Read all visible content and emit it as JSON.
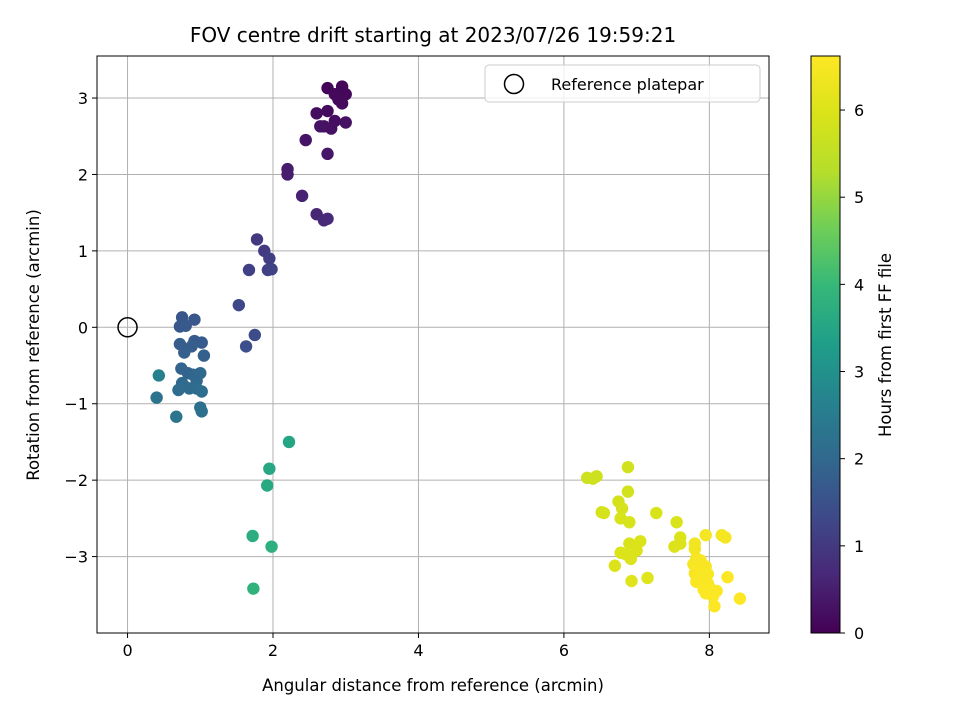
{
  "chart_data": {
    "type": "scatter",
    "title": "FOV centre drift starting at 2023/07/26 19:59:21",
    "xlabel": "Angular distance from reference (arcmin)",
    "ylabel": "Rotation from reference (arcmin)",
    "xlim": [
      -0.42,
      8.82
    ],
    "ylim": [
      -4.0,
      3.55
    ],
    "xticks": [
      0,
      2,
      4,
      6,
      8
    ],
    "yticks": [
      -3,
      -2,
      -1,
      0,
      1,
      2,
      3
    ],
    "xtick_labels": [
      "0",
      "2",
      "4",
      "6",
      "8"
    ],
    "ytick_labels": [
      "−3",
      "−2",
      "−1",
      "0",
      "1",
      "2",
      "3"
    ],
    "grid": true,
    "legend": {
      "label": "Reference platepar",
      "placement": "top-right"
    },
    "reference_point": {
      "x": 0,
      "y": 0
    },
    "colorbar": {
      "label": "Hours from first FF file",
      "colormap": "viridis",
      "range": [
        0,
        6.62
      ],
      "ticks": [
        0,
        1,
        2,
        3,
        4,
        5,
        6
      ],
      "tick_labels": [
        "0",
        "1",
        "2",
        "3",
        "4",
        "5",
        "6"
      ]
    },
    "points": [
      {
        "x": 2.75,
        "y": 3.13,
        "t": 0.05
      },
      {
        "x": 2.95,
        "y": 3.15,
        "t": 0.08
      },
      {
        "x": 3.0,
        "y": 3.05,
        "t": 0.1
      },
      {
        "x": 2.85,
        "y": 3.05,
        "t": 0.12
      },
      {
        "x": 2.9,
        "y": 2.98,
        "t": 0.14
      },
      {
        "x": 2.95,
        "y": 2.93,
        "t": 0.15
      },
      {
        "x": 2.75,
        "y": 2.83,
        "t": 0.18
      },
      {
        "x": 2.6,
        "y": 2.8,
        "t": 0.2
      },
      {
        "x": 2.85,
        "y": 2.7,
        "t": 0.22
      },
      {
        "x": 2.7,
        "y": 2.63,
        "t": 0.25
      },
      {
        "x": 2.8,
        "y": 2.6,
        "t": 0.27
      },
      {
        "x": 3.0,
        "y": 2.68,
        "t": 0.28
      },
      {
        "x": 2.65,
        "y": 2.63,
        "t": 0.3
      },
      {
        "x": 2.45,
        "y": 2.45,
        "t": 0.33
      },
      {
        "x": 2.75,
        "y": 2.27,
        "t": 0.36
      },
      {
        "x": 2.2,
        "y": 2.07,
        "t": 0.45
      },
      {
        "x": 2.2,
        "y": 2.0,
        "t": 0.48
      },
      {
        "x": 2.4,
        "y": 1.72,
        "t": 0.55
      },
      {
        "x": 2.6,
        "y": 1.48,
        "t": 0.62
      },
      {
        "x": 2.7,
        "y": 1.4,
        "t": 0.68
      },
      {
        "x": 2.75,
        "y": 1.42,
        "t": 0.7
      },
      {
        "x": 1.78,
        "y": 1.15,
        "t": 1.0
      },
      {
        "x": 1.88,
        "y": 1.0,
        "t": 1.05
      },
      {
        "x": 1.95,
        "y": 0.9,
        "t": 1.1
      },
      {
        "x": 1.67,
        "y": 0.75,
        "t": 1.15
      },
      {
        "x": 1.93,
        "y": 0.75,
        "t": 1.15
      },
      {
        "x": 1.98,
        "y": 0.76,
        "t": 1.18
      },
      {
        "x": 1.53,
        "y": 0.29,
        "t": 1.3
      },
      {
        "x": 1.75,
        "y": -0.1,
        "t": 1.4
      },
      {
        "x": 1.63,
        "y": -0.25,
        "t": 1.45
      },
      {
        "x": 0.75,
        "y": 0.13,
        "t": 1.6
      },
      {
        "x": 0.92,
        "y": 0.1,
        "t": 1.62
      },
      {
        "x": 0.72,
        "y": 0.01,
        "t": 1.65
      },
      {
        "x": 0.8,
        "y": 0.02,
        "t": 1.66
      },
      {
        "x": 0.92,
        "y": -0.18,
        "t": 1.7
      },
      {
        "x": 1.02,
        "y": -0.2,
        "t": 1.7
      },
      {
        "x": 0.72,
        "y": -0.22,
        "t": 1.75
      },
      {
        "x": 0.88,
        "y": -0.25,
        "t": 1.75
      },
      {
        "x": 0.78,
        "y": -0.33,
        "t": 1.8
      },
      {
        "x": 1.05,
        "y": -0.37,
        "t": 1.8
      },
      {
        "x": 0.74,
        "y": -0.54,
        "t": 1.9
      },
      {
        "x": 0.83,
        "y": -0.6,
        "t": 1.9
      },
      {
        "x": 0.9,
        "y": -0.62,
        "t": 1.95
      },
      {
        "x": 1.0,
        "y": -0.6,
        "t": 1.98
      },
      {
        "x": 0.43,
        "y": -0.63,
        "t": 2.6
      },
      {
        "x": 0.75,
        "y": -0.73,
        "t": 2.0
      },
      {
        "x": 0.95,
        "y": -0.7,
        "t": 2.0
      },
      {
        "x": 0.78,
        "y": -0.77,
        "t": 2.05
      },
      {
        "x": 0.85,
        "y": -0.8,
        "t": 2.05
      },
      {
        "x": 0.7,
        "y": -0.82,
        "t": 2.1
      },
      {
        "x": 0.95,
        "y": -0.8,
        "t": 2.1
      },
      {
        "x": 1.02,
        "y": -0.84,
        "t": 2.15
      },
      {
        "x": 1.0,
        "y": -1.05,
        "t": 2.2
      },
      {
        "x": 1.02,
        "y": -1.1,
        "t": 2.2
      },
      {
        "x": 0.4,
        "y": -0.92,
        "t": 2.3
      },
      {
        "x": 0.67,
        "y": -1.17,
        "t": 2.35
      },
      {
        "x": 2.22,
        "y": -1.5,
        "t": 3.5
      },
      {
        "x": 1.95,
        "y": -1.85,
        "t": 3.55
      },
      {
        "x": 1.92,
        "y": -2.07,
        "t": 3.6
      },
      {
        "x": 1.72,
        "y": -2.73,
        "t": 3.7
      },
      {
        "x": 1.98,
        "y": -2.87,
        "t": 3.75
      },
      {
        "x": 1.73,
        "y": -3.42,
        "t": 3.85
      },
      {
        "x": 6.32,
        "y": -1.97,
        "t": 5.7
      },
      {
        "x": 6.4,
        "y": -1.98,
        "t": 5.72
      },
      {
        "x": 6.45,
        "y": -1.95,
        "t": 5.75
      },
      {
        "x": 6.88,
        "y": -1.83,
        "t": 5.8
      },
      {
        "x": 6.88,
        "y": -2.15,
        "t": 5.82
      },
      {
        "x": 6.75,
        "y": -2.28,
        "t": 5.85
      },
      {
        "x": 6.52,
        "y": -2.42,
        "t": 5.85
      },
      {
        "x": 6.55,
        "y": -2.43,
        "t": 5.86
      },
      {
        "x": 6.8,
        "y": -2.37,
        "t": 5.88
      },
      {
        "x": 6.78,
        "y": -2.5,
        "t": 5.9
      },
      {
        "x": 6.9,
        "y": -2.55,
        "t": 5.9
      },
      {
        "x": 7.27,
        "y": -2.43,
        "t": 5.92
      },
      {
        "x": 7.55,
        "y": -2.55,
        "t": 5.95
      },
      {
        "x": 7.6,
        "y": -2.75,
        "t": 5.98
      },
      {
        "x": 6.9,
        "y": -2.83,
        "t": 5.95
      },
      {
        "x": 7.05,
        "y": -2.8,
        "t": 5.97
      },
      {
        "x": 6.78,
        "y": -2.95,
        "t": 5.98
      },
      {
        "x": 6.85,
        "y": -2.97,
        "t": 5.98
      },
      {
        "x": 7.0,
        "y": -2.92,
        "t": 6.0
      },
      {
        "x": 7.52,
        "y": -2.87,
        "t": 6.0
      },
      {
        "x": 6.92,
        "y": -3.03,
        "t": 6.0
      },
      {
        "x": 7.6,
        "y": -2.83,
        "t": 6.02
      },
      {
        "x": 6.7,
        "y": -3.12,
        "t": 6.02
      },
      {
        "x": 6.93,
        "y": -3.32,
        "t": 6.05
      },
      {
        "x": 7.15,
        "y": -3.28,
        "t": 6.05
      },
      {
        "x": 7.8,
        "y": -2.83,
        "t": 6.4
      },
      {
        "x": 7.8,
        "y": -2.9,
        "t": 6.42
      },
      {
        "x": 7.95,
        "y": -2.72,
        "t": 6.45
      },
      {
        "x": 8.17,
        "y": -2.72,
        "t": 6.45
      },
      {
        "x": 8.22,
        "y": -2.75,
        "t": 6.46
      },
      {
        "x": 7.82,
        "y": -3.02,
        "t": 6.48
      },
      {
        "x": 7.88,
        "y": -3.05,
        "t": 6.5
      },
      {
        "x": 7.78,
        "y": -3.1,
        "t": 6.5
      },
      {
        "x": 7.9,
        "y": -3.15,
        "t": 6.5
      },
      {
        "x": 7.95,
        "y": -3.13,
        "t": 6.52
      },
      {
        "x": 7.8,
        "y": -3.22,
        "t": 6.52
      },
      {
        "x": 7.98,
        "y": -3.23,
        "t": 6.54
      },
      {
        "x": 7.82,
        "y": -3.33,
        "t": 6.55
      },
      {
        "x": 7.9,
        "y": -3.3,
        "t": 6.55
      },
      {
        "x": 7.98,
        "y": -3.35,
        "t": 6.56
      },
      {
        "x": 8.0,
        "y": -3.4,
        "t": 6.57
      },
      {
        "x": 7.92,
        "y": -3.43,
        "t": 6.58
      },
      {
        "x": 8.1,
        "y": -3.45,
        "t": 6.58
      },
      {
        "x": 7.95,
        "y": -3.48,
        "t": 6.6
      },
      {
        "x": 8.05,
        "y": -3.52,
        "t": 6.6
      },
      {
        "x": 8.25,
        "y": -3.27,
        "t": 6.6
      },
      {
        "x": 8.07,
        "y": -3.65,
        "t": 6.62
      },
      {
        "x": 8.42,
        "y": -3.55,
        "t": 6.62
      }
    ]
  }
}
